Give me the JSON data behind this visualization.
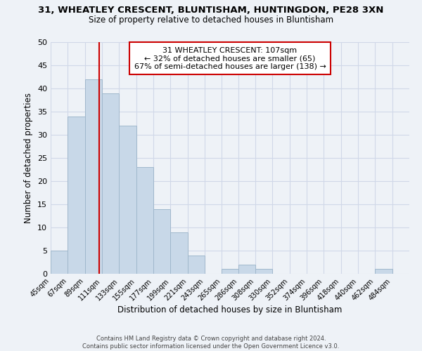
{
  "title_line1": "31, WHEATLEY CRESCENT, BLUNTISHAM, HUNTINGDON, PE28 3XN",
  "title_line2": "Size of property relative to detached houses in Bluntisham",
  "bar_labels": [
    "45sqm",
    "67sqm",
    "89sqm",
    "111sqm",
    "133sqm",
    "155sqm",
    "177sqm",
    "199sqm",
    "221sqm",
    "243sqm",
    "265sqm",
    "286sqm",
    "308sqm",
    "330sqm",
    "352sqm",
    "374sqm",
    "396sqm",
    "418sqm",
    "440sqm",
    "462sqm",
    "484sqm"
  ],
  "bar_values": [
    5,
    34,
    42,
    39,
    32,
    23,
    14,
    9,
    4,
    0,
    1,
    2,
    1,
    0,
    0,
    0,
    0,
    0,
    0,
    1,
    0
  ],
  "bar_color": "#c8d8e8",
  "bar_edge_color": "#a0b8cc",
  "property_line_x": 107,
  "property_line_label": "31 WHEATLEY CRESCENT: 107sqm",
  "annotation_line1": "← 32% of detached houses are smaller (65)",
  "annotation_line2": "67% of semi-detached houses are larger (138) →",
  "xlabel": "Distribution of detached houses by size in Bluntisham",
  "ylabel": "Number of detached properties",
  "ylim": [
    0,
    50
  ],
  "yticks": [
    0,
    5,
    10,
    15,
    20,
    25,
    30,
    35,
    40,
    45,
    50
  ],
  "bin_edges": [
    45,
    67,
    89,
    111,
    133,
    155,
    177,
    199,
    221,
    243,
    265,
    286,
    308,
    330,
    352,
    374,
    396,
    418,
    440,
    462,
    484,
    506
  ],
  "footer_line1": "Contains HM Land Registry data © Crown copyright and database right 2024.",
  "footer_line2": "Contains public sector information licensed under the Open Government Licence v3.0.",
  "annotation_box_color": "#ffffff",
  "annotation_box_edge": "#cc0000",
  "property_line_color": "#cc0000",
  "grid_color": "#d0d8e8",
  "background_color": "#eef2f7"
}
